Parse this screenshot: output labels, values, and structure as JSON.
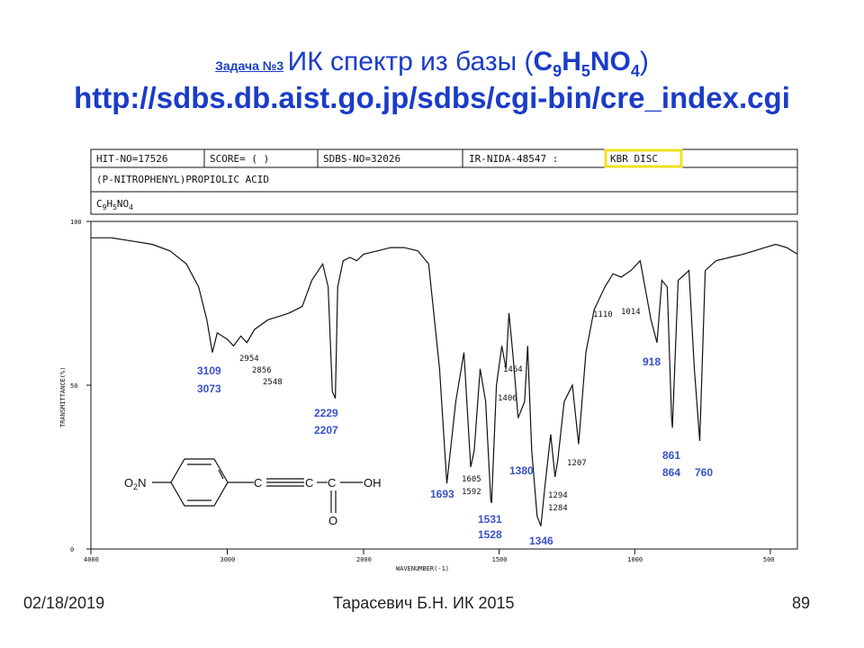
{
  "slide": {
    "task_link": "Задача №3",
    "title_text": "ИК спектр из базы (",
    "formula_parts": [
      "C",
      "9",
      "H",
      "5",
      "NO",
      "4"
    ],
    "title_close": ")",
    "url": "http://sdbs.db.aist.go.jp/sdbs/cgi-bin/cre_index.cgi"
  },
  "header_box": {
    "hit_no": "HIT-NO=17526",
    "score": "SCORE=  (  )",
    "sdbs_no": "SDBS-NO=32026",
    "ir_nida": "IR-NIDA-48547 :",
    "kbr": "KBR DISC",
    "compound": "(P-NITROPHENYL)PROPIOLIC ACID",
    "formula_parts": [
      "C",
      "9",
      "H",
      "5",
      "NO",
      "4"
    ],
    "highlight_color": "#f0e020"
  },
  "structure": {
    "o2n": "O2N",
    "c1": "C",
    "c2": "C",
    "c3": "C",
    "oh": "OH",
    "o": "O"
  },
  "footer": {
    "date": "02/18/2019",
    "author": "Тарасевич Б.Н.  ИК 2015",
    "page": "89"
  },
  "chart_data": {
    "type": "line",
    "ylabel": "TRANSMITTANCE(%)",
    "xlabel": "WAVENUMBER(-1)",
    "y_ticks": [
      "100",
      "50",
      "0"
    ],
    "x_ticks": [
      "4000",
      "3000",
      "2000",
      "1500",
      "1000",
      "500"
    ],
    "x_scale": "split linear: 4000–2000 and 2000–400 (compressed high region)",
    "ylim": [
      0,
      100
    ],
    "xlim": [
      4000,
      400
    ],
    "series": [
      {
        "x": [
          4000,
          3850,
          3700,
          3550,
          3420,
          3300,
          3210,
          3150,
          3109,
          3073,
          3000,
          2954,
          2900,
          2856,
          2800,
          2700,
          2620,
          2548,
          2450,
          2380,
          2300,
          2260,
          2229,
          2207,
          2190,
          2150,
          2100,
          2050,
          2000,
          1950,
          1900,
          1850,
          1800,
          1760,
          1720,
          1693,
          1660,
          1630,
          1605,
          1592,
          1570,
          1550,
          1531,
          1528,
          1510,
          1490,
          1475,
          1464,
          1450,
          1430,
          1406,
          1395,
          1380,
          1360,
          1346,
          1330,
          1310,
          1294,
          1284,
          1260,
          1230,
          1207,
          1180,
          1150,
          1110,
          1080,
          1050,
          1014,
          980,
          940,
          918,
          900,
          880,
          864,
          861,
          840,
          800,
          780,
          760,
          740,
          700,
          650,
          600,
          560,
          520,
          480,
          440,
          400
        ],
        "y": [
          95,
          95,
          94,
          93,
          91,
          87,
          80,
          70,
          60,
          66,
          64,
          62,
          65,
          63,
          67,
          70,
          71,
          72,
          74,
          82,
          87,
          80,
          48,
          46,
          80,
          88,
          89,
          88,
          90,
          91,
          92,
          92,
          91,
          87,
          55,
          20,
          45,
          60,
          25,
          30,
          55,
          45,
          15,
          14,
          50,
          62,
          55,
          72,
          60,
          40,
          45,
          62,
          30,
          10,
          7,
          20,
          35,
          22,
          27,
          45,
          50,
          32,
          60,
          73,
          80,
          84,
          83,
          85,
          88,
          70,
          63,
          82,
          80,
          40,
          37,
          82,
          85,
          55,
          33,
          85,
          88,
          89,
          90,
          91,
          92,
          93,
          92,
          90
        ]
      }
    ],
    "annotations": [
      {
        "label": "3109",
        "x": 3109
      },
      {
        "label": "3073",
        "x": 3073
      },
      {
        "label": "2954",
        "x": 2954
      },
      {
        "label": "2856",
        "x": 2856
      },
      {
        "label": "2548",
        "x": 2548
      },
      {
        "label": "2229",
        "x": 2229
      },
      {
        "label": "2207",
        "x": 2207
      },
      {
        "label": "1693",
        "x": 1693
      },
      {
        "label": "1605",
        "x": 1605
      },
      {
        "label": "1592",
        "x": 1592
      },
      {
        "label": "1531",
        "x": 1531
      },
      {
        "label": "1528",
        "x": 1528
      },
      {
        "label": "1464",
        "x": 1464
      },
      {
        "label": "1406",
        "x": 1406
      },
      {
        "label": "1380",
        "x": 1380
      },
      {
        "label": "1346",
        "x": 1346
      },
      {
        "label": "1294",
        "x": 1294
      },
      {
        "label": "1284",
        "x": 1284
      },
      {
        "label": "1207",
        "x": 1207
      },
      {
        "label": "1110",
        "x": 1110
      },
      {
        "label": "1014",
        "x": 1014
      },
      {
        "label": "918",
        "x": 918
      },
      {
        "label": "861",
        "x": 861
      },
      {
        "label": "864",
        "x": 864
      },
      {
        "label": "760",
        "x": 760
      }
    ]
  }
}
